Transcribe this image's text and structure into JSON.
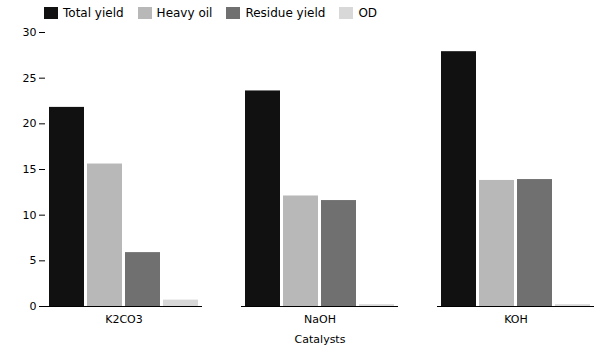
{
  "chart_data": {
    "type": "bar",
    "categories": [
      "K2CO3",
      "NaOH",
      "KOH"
    ],
    "series": [
      {
        "name": "Total yield",
        "color": "#111111",
        "values": [
          21.8,
          23.6,
          27.9
        ]
      },
      {
        "name": "Heavy oil",
        "color": "#b8b8b8",
        "values": [
          15.6,
          12.1,
          13.8
        ]
      },
      {
        "name": "Residue yield",
        "color": "#707070",
        "values": [
          5.9,
          11.6,
          13.9
        ]
      },
      {
        "name": "OD",
        "color": "#d8d8d8",
        "values": [
          0.7,
          0.2,
          0.2
        ]
      }
    ],
    "xlabel": "Catalysts",
    "ylim": [
      0,
      30
    ],
    "yticks": [
      0,
      5,
      10,
      15,
      20,
      25,
      30
    ],
    "grid": false,
    "legend": "upper left"
  }
}
